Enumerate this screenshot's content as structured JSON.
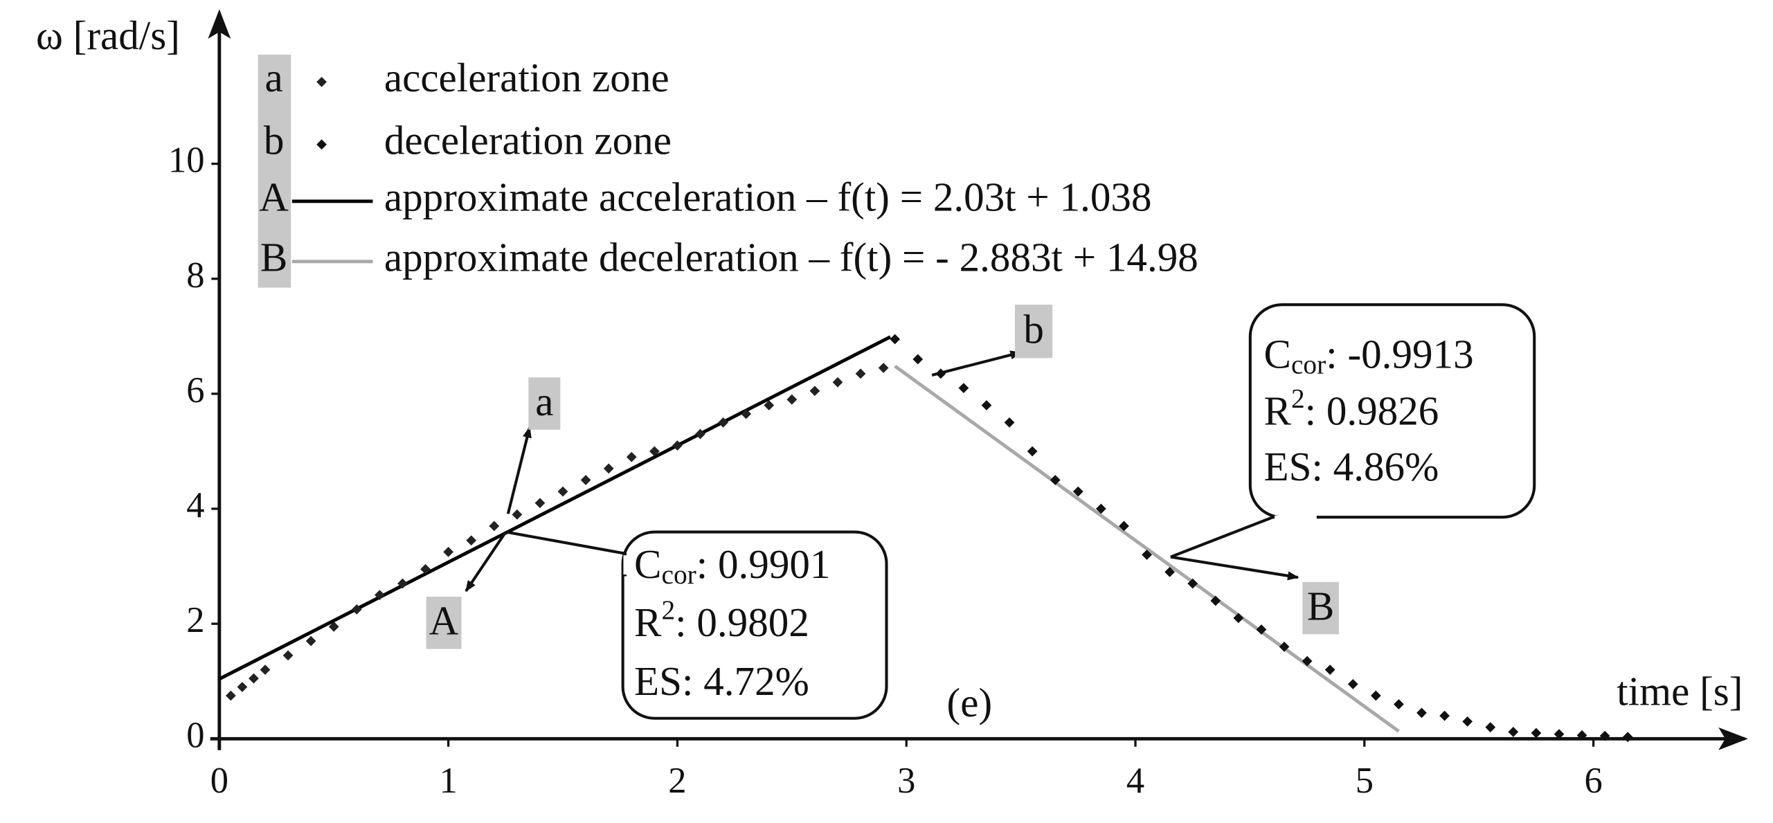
{
  "chart_data": {
    "type": "scatter",
    "x_label": "time [s]",
    "y_label": "ω [rad/s]",
    "panel_label": "(e)",
    "xlim": [
      0,
      6.6
    ],
    "ylim": [
      0,
      12.5
    ],
    "xticks": [
      0,
      1,
      2,
      3,
      4,
      5,
      6
    ],
    "yticks": [
      0,
      2,
      4,
      6,
      8,
      10
    ],
    "series": [
      {
        "name": "acceleration zone",
        "badge": "a",
        "kind": "points",
        "color": "#222222",
        "x": [
          0.05,
          0.1,
          0.15,
          0.2,
          0.3,
          0.4,
          0.5,
          0.6,
          0.7,
          0.8,
          0.9,
          1.0,
          1.1,
          1.2,
          1.3,
          1.4,
          1.5,
          1.6,
          1.7,
          1.8,
          1.9,
          2.0,
          2.1,
          2.2,
          2.3,
          2.4,
          2.5,
          2.6,
          2.7,
          2.8,
          2.9
        ],
        "values": [
          0.75,
          0.9,
          1.05,
          1.2,
          1.45,
          1.7,
          1.95,
          2.25,
          2.5,
          2.7,
          2.95,
          3.25,
          3.45,
          3.7,
          3.9,
          4.1,
          4.3,
          4.5,
          4.7,
          4.9,
          5.0,
          5.1,
          5.3,
          5.5,
          5.65,
          5.8,
          5.9,
          6.05,
          6.2,
          6.35,
          6.45
        ]
      },
      {
        "name": "deceleration zone",
        "badge": "b",
        "kind": "points",
        "color": "#111111",
        "x": [
          2.95,
          3.05,
          3.15,
          3.25,
          3.35,
          3.45,
          3.55,
          3.65,
          3.75,
          3.85,
          3.95,
          4.05,
          4.15,
          4.25,
          4.35,
          4.45,
          4.55,
          4.65,
          4.75,
          4.85,
          4.95,
          5.05,
          5.15,
          5.25,
          5.35,
          5.45,
          5.55,
          5.65,
          5.75,
          5.85,
          5.95,
          6.05,
          6.15
        ],
        "values": [
          6.95,
          6.6,
          6.35,
          6.1,
          5.8,
          5.5,
          5.0,
          4.5,
          4.3,
          4.0,
          3.7,
          3.2,
          2.9,
          2.7,
          2.4,
          2.1,
          1.9,
          1.6,
          1.35,
          1.2,
          0.95,
          0.75,
          0.6,
          0.45,
          0.4,
          0.3,
          0.2,
          0.12,
          0.1,
          0.08,
          0.06,
          0.05,
          0.03
        ]
      },
      {
        "name": "approximate acceleration – f(t) = 2.03t + 1.038",
        "badge": "A",
        "kind": "line",
        "color": "#000000",
        "x": [
          0,
          2.93
        ],
        "values": [
          1.04,
          6.99
        ]
      },
      {
        "name": "approximate deceleration – f(t) = - 2.883t + 14.98",
        "badge": "B",
        "kind": "line",
        "color": "#a8a8a8",
        "x": [
          2.95,
          5.15
        ],
        "values": [
          6.48,
          0.13
        ]
      }
    ],
    "callouts": [
      {
        "label": "a"
      },
      {
        "label": "b"
      },
      {
        "label": "A"
      },
      {
        "label": "B"
      }
    ],
    "stat_boxes": [
      {
        "rows": [
          {
            "main": "C",
            "sub": "cor",
            "text": ": 0.9901"
          },
          {
            "main": "R",
            "sup": "2",
            "text": ": 0.9802"
          },
          {
            "main": "ES: 4.72%"
          }
        ]
      },
      {
        "rows": [
          {
            "main": "C",
            "sub": "cor",
            "text": ": -0.9913"
          },
          {
            "main": "R",
            "sup": "2",
            "text": ": 0.9826"
          },
          {
            "main": "ES: 4.86%"
          }
        ]
      }
    ]
  }
}
